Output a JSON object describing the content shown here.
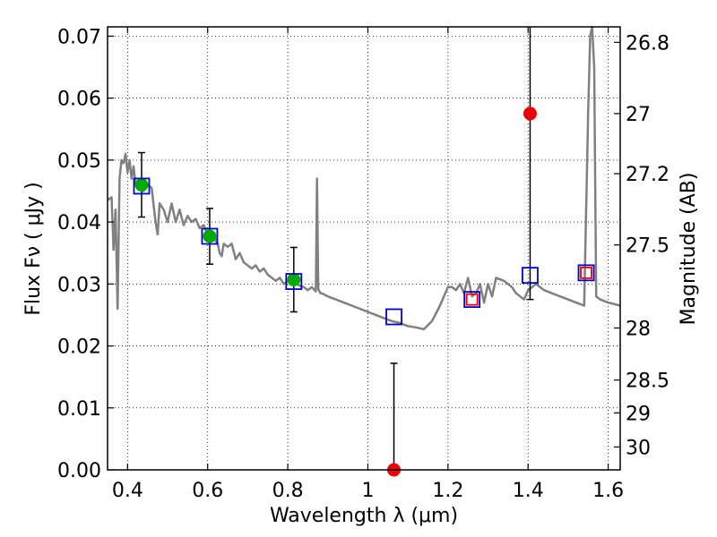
{
  "chart_data": {
    "type": "scatter",
    "xlabel": "Wavelength  λ (μm)",
    "ylabel": "Flux  Fν  ( μJy )",
    "ylabel_right": "Magnitude (AB)",
    "xlim": [
      0.35,
      1.63
    ],
    "ylim": [
      0.0,
      0.0715
    ],
    "grid": true,
    "x_ticks": [
      0.4,
      0.6,
      0.8,
      1.0,
      1.2,
      1.4,
      1.6
    ],
    "x_tick_labels": [
      "0.4",
      "0.6",
      "0.8",
      "1",
      "1.2",
      "1.4",
      "1.6"
    ],
    "y_ticks": [
      0.0,
      0.01,
      0.02,
      0.03,
      0.04,
      0.05,
      0.06,
      0.07
    ],
    "y_tick_labels": [
      "0.00",
      "0.01",
      "0.02",
      "0.03",
      "0.04",
      "0.05",
      "0.06",
      "0.07"
    ],
    "right_ticks": [
      {
        "label": "26.8",
        "flux": 0.069
      },
      {
        "label": "27",
        "flux": 0.0575
      },
      {
        "label": "27.2",
        "flux": 0.0478
      },
      {
        "label": "27.5",
        "flux": 0.0363
      },
      {
        "label": "28",
        "flux": 0.0229
      },
      {
        "label": "28.5",
        "flux": 0.0145
      },
      {
        "label": "29",
        "flux": 0.0092
      },
      {
        "label": "30",
        "flux": 0.0037
      }
    ],
    "model_spectrum": {
      "color": "#808080",
      "x": [
        0.35,
        0.36,
        0.365,
        0.37,
        0.375,
        0.38,
        0.385,
        0.39,
        0.395,
        0.4,
        0.405,
        0.41,
        0.415,
        0.42,
        0.425,
        0.43,
        0.44,
        0.45,
        0.46,
        0.47,
        0.475,
        0.48,
        0.49,
        0.5,
        0.51,
        0.52,
        0.53,
        0.54,
        0.55,
        0.56,
        0.57,
        0.58,
        0.59,
        0.6,
        0.61,
        0.62,
        0.625,
        0.63,
        0.635,
        0.64,
        0.65,
        0.66,
        0.67,
        0.68,
        0.69,
        0.7,
        0.71,
        0.72,
        0.73,
        0.74,
        0.75,
        0.76,
        0.77,
        0.78,
        0.79,
        0.8,
        0.82,
        0.84,
        0.85,
        0.86,
        0.87,
        0.873,
        0.876,
        0.879,
        0.882,
        0.885,
        0.9,
        0.92,
        0.94,
        0.96,
        0.98,
        1.0,
        1.02,
        1.04,
        1.06,
        1.08,
        1.1,
        1.12,
        1.14,
        1.16,
        1.18,
        1.2,
        1.21,
        1.22,
        1.23,
        1.24,
        1.25,
        1.26,
        1.27,
        1.28,
        1.29,
        1.3,
        1.31,
        1.32,
        1.34,
        1.36,
        1.37,
        1.38,
        1.39,
        1.4,
        1.42,
        1.44,
        1.46,
        1.48,
        1.5,
        1.52,
        1.54,
        1.545,
        1.55,
        1.555,
        1.56,
        1.565,
        1.57,
        1.58,
        1.6,
        1.63
      ],
      "y": [
        0.0435,
        0.044,
        0.0355,
        0.042,
        0.026,
        0.047,
        0.05,
        0.0495,
        0.051,
        0.048,
        0.05,
        0.047,
        0.049,
        0.046,
        0.0465,
        0.0455,
        0.045,
        0.046,
        0.0455,
        0.04,
        0.038,
        0.043,
        0.042,
        0.04,
        0.043,
        0.04,
        0.042,
        0.0395,
        0.041,
        0.04,
        0.0405,
        0.039,
        0.0395,
        0.038,
        0.0385,
        0.037,
        0.0365,
        0.035,
        0.0345,
        0.0365,
        0.036,
        0.0365,
        0.034,
        0.035,
        0.0335,
        0.033,
        0.0325,
        0.033,
        0.032,
        0.0325,
        0.0315,
        0.031,
        0.0305,
        0.031,
        0.03,
        0.0305,
        0.03,
        0.0295,
        0.029,
        0.0295,
        0.0288,
        0.047,
        0.0292,
        0.0288,
        0.0285,
        0.0285,
        0.028,
        0.0275,
        0.027,
        0.0265,
        0.026,
        0.0255,
        0.025,
        0.0245,
        0.024,
        0.0237,
        0.0232,
        0.023,
        0.0227,
        0.024,
        0.0265,
        0.0295,
        0.0295,
        0.029,
        0.03,
        0.0285,
        0.031,
        0.028,
        0.0285,
        0.03,
        0.027,
        0.03,
        0.028,
        0.031,
        0.0305,
        0.0295,
        0.0285,
        0.028,
        0.0275,
        0.029,
        0.03,
        0.029,
        0.0285,
        0.028,
        0.0275,
        0.027,
        0.0265,
        0.042,
        0.058,
        0.07,
        0.0715,
        0.065,
        0.028,
        0.0275,
        0.027,
        0.0265
      ]
    },
    "model_points": {
      "color": "#0000cc",
      "x": [
        0.435,
        0.605,
        0.815,
        1.065,
        1.26,
        1.405,
        1.545
      ],
      "y": [
        0.0458,
        0.0377,
        0.0304,
        0.0247,
        0.0275,
        0.0314,
        0.0318
      ]
    },
    "observed_points": {
      "color": "#00aa00",
      "x": [
        0.435,
        0.605,
        0.815
      ],
      "y": [
        0.046,
        0.0377,
        0.0307
      ],
      "err": [
        0.0052,
        0.0045,
        0.0052
      ]
    },
    "upper_limit_points": {
      "color": "#ee0000",
      "x": [
        1.26,
        1.545
      ],
      "y": [
        0.0275,
        0.0318
      ]
    },
    "red_detections": {
      "color": "#ee0000",
      "x": [
        1.065,
        1.405
      ],
      "y": [
        0.0,
        0.0575
      ],
      "err_low": [
        0.0,
        0.0275
      ],
      "err_high": [
        0.0172,
        0.0715
      ]
    }
  }
}
